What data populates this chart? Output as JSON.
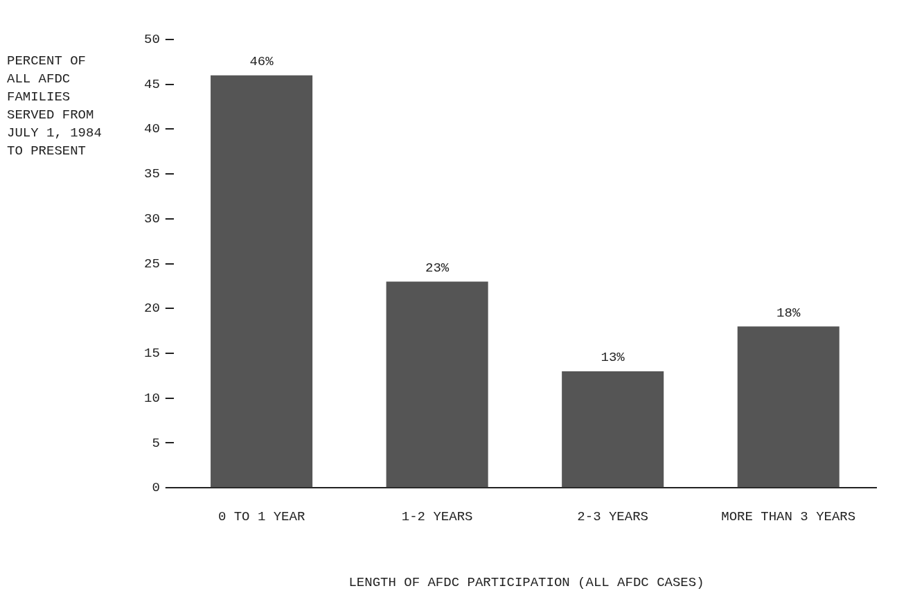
{
  "chart_data": {
    "type": "bar",
    "xlabel": "LENGTH OF AFDC PARTICIPATION (ALL AFDC CASES)",
    "ylabel": "PERCENT OF ALL AFDC FAMILIES SERVED FROM JULY 1, 1984 TO PRESENT",
    "categories": [
      "0 TO 1 YEAR",
      "1-2 YEARS",
      "2-3 YEARS",
      "MORE THAN 3 YEARS"
    ],
    "values": [
      46,
      23,
      13,
      18
    ],
    "color": "#555555",
    "value_labels": [
      "46%",
      "23%",
      "13%",
      "18%"
    ],
    "ylim": [
      0,
      50
    ],
    "yticks": [
      0,
      5,
      10,
      15,
      20,
      25,
      30,
      35,
      40,
      45,
      50
    ],
    "grid": false,
    "legend": false
  }
}
